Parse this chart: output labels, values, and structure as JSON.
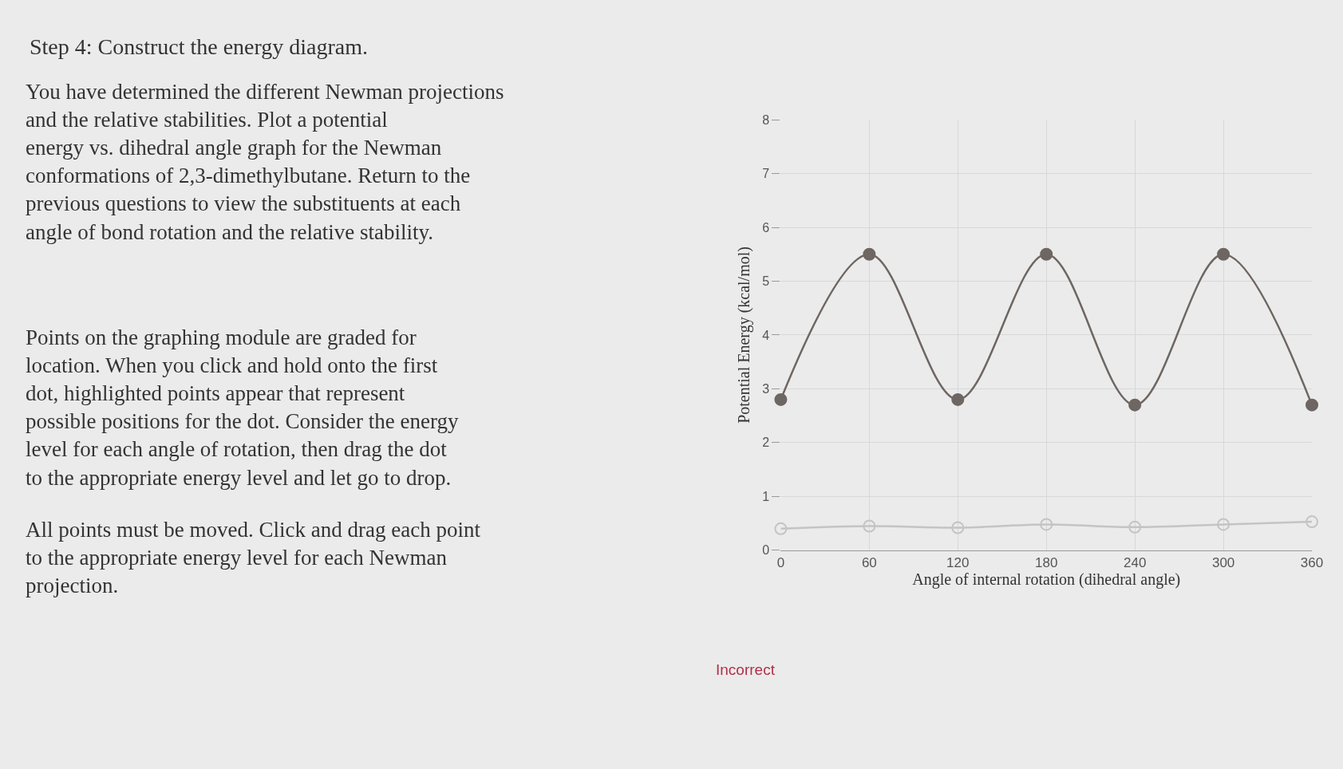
{
  "chart_data": {
    "type": "line",
    "title": "Step 4: Construct the energy diagram.",
    "xlabel": "Angle of internal rotation (dihedral angle)",
    "ylabel": "Potential Energy (kcal/mol)",
    "x": [
      0,
      60,
      120,
      180,
      240,
      300,
      360
    ],
    "series": [
      {
        "color": "#6e6662",
        "values": [
          2.8,
          5.5,
          2.8,
          5.5,
          2.7,
          5.5,
          2.7
        ]
      },
      {
        "color": "#c4c4c4",
        "values": [
          0.4,
          0.45,
          0.42,
          0.48,
          0.43,
          0.48,
          0.53
        ]
      }
    ],
    "xlim": [
      0,
      360
    ],
    "xticks": [
      0,
      60,
      120,
      180,
      240,
      300,
      360
    ],
    "ylim": [
      0,
      8
    ],
    "yticks": [
      0,
      1,
      2,
      3,
      4,
      5,
      6,
      7,
      8
    ],
    "grid": true,
    "marker": "circle",
    "line_style": "solid",
    "annotations": [
      "You have determined the different Newman projections and the relative stabilities. Plot a potential energy vs. dihedral angle graph for the Newman conformations of 2,3-dimethylbutane. Return to the previous questions to view the substituents at each angle of bond rotation and the relative stability.",
      "Points on the graphing module are graded for location. When you click and hold onto the first dot, highlighted points appear that represent possible positions for the dot. Consider the energy level for each angle of rotation, then drag the dot to the appropriate energy level and let go to drop.",
      "All points must be moved. Click and drag each point to the appropriate energy level for each Newman projection.",
      "Incorrect"
    ]
  }
}
